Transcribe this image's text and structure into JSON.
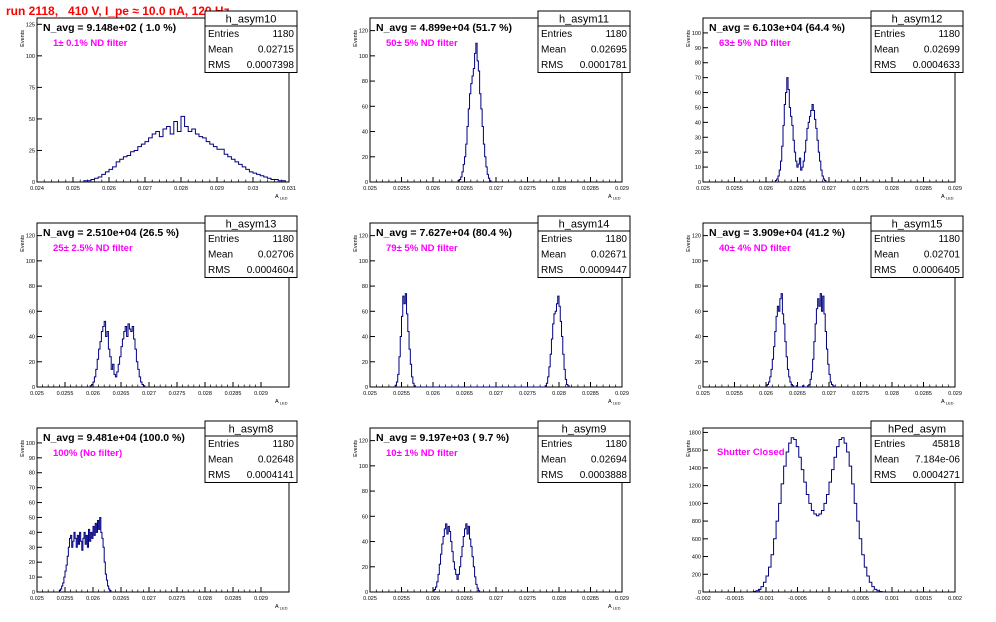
{
  "page_title": "run 2118,   410 V, I_pe ≈ 10.0 nA, 120 Hz",
  "colors": {
    "title": "#ff0000",
    "histogram": "#000080",
    "annotation": "#ff00ff",
    "text": "#000000"
  },
  "chart_data": [
    {
      "type": "histogram",
      "title": "h_asym10",
      "annotation": "N_avg = 9.148e+02 ( 1.0 %)",
      "filter_label": "1± 0.1% ND filter",
      "ylabel": "Events",
      "xlabel": "A",
      "xlabel_sub": "LED",
      "stats": [
        {
          "label": "Entries",
          "value": "1180"
        },
        {
          "label": "Mean",
          "value": "0.02715"
        },
        {
          "label": "RMS",
          "value": "0.0007398"
        }
      ],
      "xlim": [
        0.024,
        0.031
      ],
      "ylim": [
        0,
        130
      ],
      "xticks": [
        "0.024",
        "0.025",
        "0.026",
        "0.027",
        "0.028",
        "0.029",
        "0.03",
        "0.031"
      ],
      "yticks": [
        "0",
        "25",
        "50",
        "75",
        "100",
        "125"
      ],
      "bin_width": 0.0001,
      "bins": {
        "x0": 0.0253,
        "values": [
          1,
          1,
          2,
          3,
          4,
          6,
          8,
          10,
          12,
          16,
          18,
          20,
          21,
          24,
          25,
          28,
          30,
          32,
          35,
          38,
          40,
          36,
          42,
          44,
          38,
          48,
          40,
          52,
          44,
          40,
          42,
          38,
          36,
          35,
          32,
          30,
          28,
          26,
          26,
          22,
          20,
          18,
          16,
          14,
          12,
          10,
          8,
          7,
          6,
          5,
          4,
          3,
          2,
          2,
          1,
          1
        ]
      }
    },
    {
      "type": "histogram",
      "title": "h_asym11",
      "annotation": "N_avg = 4.899e+04 (51.7 %)",
      "filter_label": "50± 5% ND filter",
      "ylabel": "Events",
      "xlabel": "A",
      "xlabel_sub": "LED",
      "stats": [
        {
          "label": "Entries",
          "value": "1180"
        },
        {
          "label": "Mean",
          "value": "0.02695"
        },
        {
          "label": "RMS",
          "value": "0.0001781"
        }
      ],
      "xlim": [
        0.025,
        0.029
      ],
      "ylim": [
        0,
        130
      ],
      "xticks": [
        "0.025",
        "0.0255",
        "0.026",
        "0.0265",
        "0.027",
        "0.0275",
        "0.028",
        "0.0285",
        "0.029"
      ],
      "yticks": [
        "0",
        "20",
        "40",
        "60",
        "80",
        "100",
        "120"
      ],
      "bin_width": 2e-05,
      "bins": {
        "x0": 0.0264,
        "values": [
          1,
          2,
          4,
          8,
          14,
          20,
          30,
          44,
          58,
          70,
          78,
          84,
          90,
          102,
          110,
          96,
          88,
          70,
          58,
          44,
          30,
          20,
          12,
          6,
          3,
          1
        ]
      }
    },
    {
      "type": "histogram",
      "title": "h_asym12",
      "annotation": "N_avg = 6.103e+04 (64.4 %)",
      "filter_label": "63± 5% ND filter",
      "ylabel": "Events",
      "xlabel": "A",
      "xlabel_sub": "LED",
      "stats": [
        {
          "label": "Entries",
          "value": "1180"
        },
        {
          "label": "Mean",
          "value": "0.02699"
        },
        {
          "label": "RMS",
          "value": "0.0004633"
        }
      ],
      "xlim": [
        0.025,
        0.029
      ],
      "ylim": [
        0,
        110
      ],
      "xticks": [
        "0.025",
        "0.0255",
        "0.026",
        "0.0265",
        "0.027",
        "0.0275",
        "0.028",
        "0.0285",
        "0.029"
      ],
      "yticks": [
        "0",
        "10",
        "20",
        "30",
        "40",
        "50",
        "60",
        "70",
        "80",
        "90",
        "100"
      ],
      "bin_width": 2e-05,
      "bins": {
        "x0": 0.02615,
        "values": [
          1,
          2,
          4,
          8,
          14,
          24,
          38,
          52,
          60,
          70,
          62,
          50,
          44,
          38,
          28,
          20,
          14,
          10,
          12,
          16,
          8,
          10,
          14,
          20,
          28,
          36,
          40,
          44,
          48,
          52,
          48,
          42,
          36,
          28,
          20,
          14,
          8,
          4,
          2,
          1
        ]
      }
    },
    {
      "type": "histogram",
      "title": "h_asym13",
      "annotation": "N_avg = 2.510e+04 (26.5 %)",
      "filter_label": "25± 2.5% ND filter",
      "ylabel": "Events",
      "xlabel": "A",
      "xlabel_sub": "LED",
      "stats": [
        {
          "label": "Entries",
          "value": "1180"
        },
        {
          "label": "Mean",
          "value": "0.02706"
        },
        {
          "label": "RMS",
          "value": "0.0004604"
        }
      ],
      "xlim": [
        0.025,
        0.0295
      ],
      "ylim": [
        0,
        130
      ],
      "xticks": [
        "0.025",
        "0.0255",
        "0.026",
        "0.0265",
        "0.027",
        "0.0275",
        "0.028",
        "0.0285",
        "0.029"
      ],
      "yticks": [
        "0",
        "20",
        "40",
        "60",
        "80",
        "100",
        "120"
      ],
      "bin_width": 2.5e-05,
      "bins": {
        "x0": 0.02595,
        "values": [
          1,
          2,
          4,
          8,
          14,
          22,
          30,
          36,
          44,
          48,
          52,
          40,
          44,
          30,
          24,
          14,
          18,
          10,
          8,
          12,
          18,
          24,
          32,
          38,
          44,
          48,
          40,
          50,
          46,
          44,
          48,
          38,
          30,
          20,
          14,
          8,
          4,
          2,
          1
        ]
      }
    },
    {
      "type": "histogram",
      "title": "h_asym14",
      "annotation": "N_avg = 7.627e+04 (80.4 %)",
      "filter_label": "79± 5% ND filter",
      "ylabel": "Events",
      "xlabel": "A",
      "xlabel_sub": "LED",
      "stats": [
        {
          "label": "Entries",
          "value": "1180"
        },
        {
          "label": "Mean",
          "value": "0.02671"
        },
        {
          "label": "RMS",
          "value": "0.0009447"
        }
      ],
      "xlim": [
        0.025,
        0.029
      ],
      "ylim": [
        0,
        130
      ],
      "xticks": [
        "0.025",
        "0.0255",
        "0.026",
        "0.0265",
        "0.027",
        "0.0275",
        "0.028",
        "0.0285",
        "0.029"
      ],
      "yticks": [
        "0",
        "20",
        "40",
        "60",
        "80",
        "100",
        "120"
      ],
      "bin_width": 2e-05,
      "bins": {
        "x0": 0.0254,
        "values": [
          1,
          4,
          10,
          24,
          40,
          56,
          72,
          66,
          74,
          58,
          44,
          30,
          18,
          8,
          3,
          1,
          0,
          0,
          0,
          0,
          0,
          0,
          0,
          0,
          0,
          0,
          0,
          0,
          0,
          0,
          0,
          0,
          0,
          0,
          0,
          0,
          0,
          0,
          0,
          0,
          0,
          0,
          0,
          0,
          0,
          0,
          0,
          0,
          0,
          0,
          0,
          0,
          0,
          0,
          0,
          0,
          0,
          0,
          0,
          0,
          0,
          0,
          0,
          0,
          0,
          0,
          0,
          0,
          0,
          0,
          0,
          0,
          0,
          0,
          0,
          0,
          0,
          0,
          0,
          0,
          0,
          0,
          0,
          0,
          0,
          0,
          0,
          0,
          0,
          0,
          0,
          0,
          0,
          0,
          0,
          0,
          0,
          0,
          0,
          0,
          0,
          0,
          0,
          0,
          0,
          0,
          0,
          0,
          0,
          0,
          0,
          0,
          0,
          0,
          0,
          0,
          0,
          0,
          0,
          1,
          3,
          8,
          16,
          26,
          38,
          50,
          58,
          60,
          66,
          72,
          64,
          52,
          40,
          26,
          14,
          6,
          2,
          1
        ]
      }
    },
    {
      "type": "histogram",
      "title": "h_asym15",
      "annotation": "N_avg = 3.909e+04 (41.2 %)",
      "filter_label": "40± 4% ND filter",
      "ylabel": "Events",
      "xlabel": "A",
      "xlabel_sub": "LED",
      "stats": [
        {
          "label": "Entries",
          "value": "1180"
        },
        {
          "label": "Mean",
          "value": "0.02701"
        },
        {
          "label": "RMS",
          "value": "0.0006405"
        }
      ],
      "xlim": [
        0.025,
        0.029
      ],
      "ylim": [
        0,
        130
      ],
      "xticks": [
        "0.025",
        "0.0255",
        "0.026",
        "0.0265",
        "0.027",
        "0.0275",
        "0.028",
        "0.0285",
        "0.029"
      ],
      "yticks": [
        "0",
        "20",
        "40",
        "60",
        "80",
        "100",
        "120"
      ],
      "bin_width": 2e-05,
      "bins": {
        "x0": 0.026,
        "values": [
          1,
          2,
          4,
          8,
          14,
          22,
          32,
          44,
          56,
          64,
          60,
          70,
          74,
          58,
          50,
          36,
          24,
          14,
          8,
          4,
          2,
          1,
          0,
          0,
          1,
          0,
          0,
          0,
          0,
          1,
          0,
          0,
          0,
          1,
          2,
          6,
          12,
          22,
          36,
          50,
          62,
          70,
          64,
          74,
          60,
          72,
          58,
          44,
          30,
          18,
          10,
          4,
          2,
          1
        ]
      }
    },
    {
      "type": "histogram",
      "title": "h_asym8",
      "annotation": "N_avg = 9.481e+04 (100.0 %)",
      "filter_label": "100% (No filter)",
      "ylabel": "Events",
      "xlabel": "A",
      "xlabel_sub": "LED",
      "stats": [
        {
          "label": "Entries",
          "value": "1180"
        },
        {
          "label": "Mean",
          "value": "0.02648"
        },
        {
          "label": "RMS",
          "value": "0.0004141"
        }
      ],
      "xlim": [
        0.025,
        0.0295
      ],
      "ylim": [
        0,
        110
      ],
      "xticks": [
        "0.025",
        "0.0255",
        "0.026",
        "0.0265",
        "0.027",
        "0.0275",
        "0.028",
        "0.0285",
        "0.029"
      ],
      "yticks": [
        "0",
        "10",
        "20",
        "30",
        "40",
        "50",
        "60",
        "70",
        "80",
        "90",
        "100"
      ],
      "bin_width": 2e-05,
      "bins": {
        "x0": 0.0254,
        "values": [
          1,
          2,
          4,
          6,
          10,
          14,
          18,
          24,
          30,
          36,
          38,
          30,
          34,
          40,
          36,
          30,
          38,
          32,
          40,
          34,
          28,
          36,
          40,
          32,
          38,
          30,
          42,
          34,
          40,
          36,
          44,
          38,
          46,
          40,
          48,
          42,
          50,
          40,
          36,
          30,
          20,
          12,
          8,
          4,
          2,
          1
        ]
      }
    },
    {
      "type": "histogram",
      "title": "h_asym9",
      "annotation": "N_avg = 9.197e+03 ( 9.7 %)",
      "filter_label": "10± 1% ND filter",
      "ylabel": "Events",
      "xlabel": "A",
      "xlabel_sub": "LED",
      "stats": [
        {
          "label": "Entries",
          "value": "1180"
        },
        {
          "label": "Mean",
          "value": "0.02694"
        },
        {
          "label": "RMS",
          "value": "0.0003888"
        }
      ],
      "xlim": [
        0.025,
        0.029
      ],
      "ylim": [
        0,
        130
      ],
      "xticks": [
        "0.025",
        "0.0255",
        "0.026",
        "0.0265",
        "0.027",
        "0.0275",
        "0.028",
        "0.0285",
        "0.029"
      ],
      "yticks": [
        "0",
        "20",
        "40",
        "60",
        "80",
        "100",
        "120"
      ],
      "bin_width": 2e-05,
      "bins": {
        "x0": 0.026,
        "values": [
          1,
          2,
          4,
          8,
          14,
          22,
          30,
          38,
          44,
          50,
          54,
          46,
          52,
          48,
          40,
          32,
          24,
          18,
          14,
          10,
          14,
          20,
          28,
          36,
          44,
          50,
          54,
          46,
          52,
          42,
          36,
          28,
          20,
          12,
          6,
          3,
          1
        ]
      }
    },
    {
      "type": "histogram",
      "title": "hPed_asym",
      "annotation": "",
      "filter_label": "Shutter Closed",
      "ylabel": "Events",
      "xlabel": "",
      "xlabel_sub": "",
      "stats": [
        {
          "label": "Entries",
          "value": "45818"
        },
        {
          "label": "Mean",
          "value": "7.184e-06"
        },
        {
          "label": "RMS",
          "value": "0.0004271"
        }
      ],
      "xlim": [
        -0.002,
        0.002
      ],
      "ylim": [
        0,
        1850
      ],
      "xticks": [
        "-0.002",
        "-0.0015",
        "-0.001",
        "-0.0005",
        "0",
        "0.0005",
        "0.001",
        "0.0015",
        "0.002"
      ],
      "yticks": [
        "0",
        "200",
        "400",
        "600",
        "800",
        "1000",
        "1200",
        "1400",
        "1600",
        "1800"
      ],
      "bin_width": 4e-05,
      "bins": {
        "x0": -0.00124,
        "values": [
          2,
          6,
          14,
          30,
          60,
          110,
          180,
          280,
          420,
          600,
          800,
          1000,
          1220,
          1420,
          1580,
          1680,
          1740,
          1720,
          1640,
          1520,
          1380,
          1240,
          1100,
          1000,
          920,
          880,
          860,
          880,
          920,
          1000,
          1100,
          1240,
          1380,
          1520,
          1640,
          1720,
          1740,
          1680,
          1580,
          1420,
          1220,
          1000,
          800,
          600,
          420,
          280,
          180,
          110,
          60,
          30,
          14,
          6,
          2
        ]
      }
    }
  ]
}
